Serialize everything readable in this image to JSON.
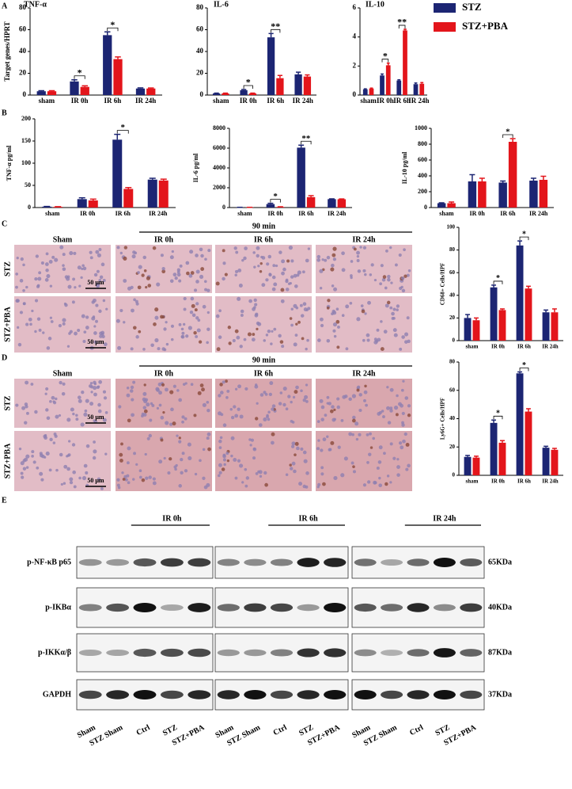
{
  "chart_data": [
    {
      "type": "bar",
      "title": "TNF-α",
      "ylabel": "Target genes/HPRT",
      "categories": [
        "sham",
        "IR 0h",
        "IR 6h",
        "IR 24h"
      ],
      "series": [
        {
          "name": "STZ",
          "color": "#1c2573",
          "values": [
            3.5,
            12.5,
            55,
            6
          ],
          "errors": [
            0.5,
            1.5,
            3,
            0.6
          ]
        },
        {
          "name": "STZ+PBA",
          "color": "#e3151b",
          "values": [
            3.5,
            7.5,
            33,
            6
          ],
          "errors": [
            0.5,
            1,
            2,
            0.5
          ]
        }
      ],
      "ylim": [
        0,
        80
      ],
      "yticks": [
        0,
        20,
        40,
        60,
        80
      ],
      "significance": [
        null,
        "*",
        "*",
        null
      ],
      "legend": "upper right"
    },
    {
      "type": "bar",
      "title": "IL-6",
      "categories": [
        "sham",
        "IR 0h",
        "IR 6h",
        "IR 24h"
      ],
      "series": [
        {
          "name": "STZ",
          "color": "#1c2573",
          "values": [
            1.5,
            4.5,
            53,
            19
          ],
          "errors": [
            0.3,
            0.6,
            3.5,
            2
          ]
        },
        {
          "name": "STZ+PBA",
          "color": "#e3151b",
          "values": [
            1.5,
            1.5,
            15.5,
            17
          ],
          "errors": [
            0.3,
            0.3,
            2.5,
            1.5
          ]
        }
      ],
      "ylim": [
        0,
        80
      ],
      "yticks": [
        0,
        20,
        40,
        60,
        80
      ],
      "significance": [
        null,
        "*",
        "**",
        null
      ]
    },
    {
      "type": "bar",
      "title": "IL-10",
      "categories": [
        "sham",
        "IR 0h",
        "IR 6h",
        "IR 24h"
      ],
      "series": [
        {
          "name": "STZ",
          "color": "#1c2573",
          "values": [
            0.4,
            1.35,
            1.0,
            0.75
          ],
          "errors": [
            0.03,
            0.1,
            0.05,
            0.08
          ]
        },
        {
          "name": "STZ+PBA",
          "color": "#e3151b",
          "values": [
            0.45,
            2.05,
            4.45,
            0.78
          ],
          "errors": [
            0.03,
            0.15,
            0.08,
            0.08
          ]
        }
      ],
      "ylim": [
        0,
        6
      ],
      "yticks": [
        0,
        2,
        4,
        6
      ],
      "significance": [
        null,
        "*",
        "**",
        null
      ]
    },
    {
      "type": "bar",
      "ylabel": "TNF-α pg/ml",
      "categories": [
        "sham",
        "IR 0h",
        "IR 6h",
        "IR 24h"
      ],
      "series": [
        {
          "name": "STZ",
          "color": "#1c2573",
          "values": [
            2,
            19,
            153,
            63
          ],
          "errors": [
            0.5,
            3,
            12,
            3
          ]
        },
        {
          "name": "STZ+PBA",
          "color": "#e3151b",
          "values": [
            1.5,
            16,
            42,
            61
          ],
          "errors": [
            0.5,
            3,
            3,
            3
          ]
        }
      ],
      "ylim": [
        0,
        200
      ],
      "yticks": [
        0,
        50,
        100,
        150,
        200
      ],
      "significance": [
        null,
        null,
        "*",
        null
      ]
    },
    {
      "type": "bar",
      "ylabel": "IL-6 pg/ml",
      "categories": [
        "sham",
        "IR 0h",
        "IR 6h",
        "IR 24h"
      ],
      "series": [
        {
          "name": "STZ",
          "color": "#1c2573",
          "values": [
            20,
            350,
            6050,
            850
          ],
          "errors": [
            5,
            80,
            250,
            30
          ]
        },
        {
          "name": "STZ+PBA",
          "color": "#e3151b",
          "values": [
            20,
            60,
            1050,
            840
          ],
          "errors": [
            5,
            20,
            150,
            30
          ]
        }
      ],
      "ylim": [
        0,
        8000
      ],
      "yticks": [
        0,
        2000,
        4000,
        6000,
        8000
      ],
      "significance": [
        null,
        "*",
        "**",
        null
      ]
    },
    {
      "type": "bar",
      "ylabel": "IL-10 pg/ml",
      "categories": [
        "sham",
        "IR 0h",
        "IR 6h",
        "IR 24h"
      ],
      "series": [
        {
          "name": "STZ",
          "color": "#1c2573",
          "values": [
            55,
            330,
            315,
            340
          ],
          "errors": [
            5,
            85,
            20,
            30
          ]
        },
        {
          "name": "STZ+PBA",
          "color": "#e3151b",
          "values": [
            55,
            330,
            830,
            350
          ],
          "errors": [
            15,
            40,
            40,
            45
          ]
        }
      ],
      "ylim": [
        0,
        1000
      ],
      "yticks": [
        0,
        200,
        400,
        600,
        800,
        1000
      ],
      "significance": [
        null,
        null,
        "*",
        null
      ]
    },
    {
      "type": "bar",
      "ylabel": "CD68+ Cells/HPF",
      "categories": [
        "sham",
        "IR 0h",
        "IR 6h",
        "IR 24h"
      ],
      "series": [
        {
          "name": "STZ",
          "color": "#1c2573",
          "values": [
            20,
            47,
            84,
            25
          ],
          "errors": [
            3,
            2,
            4,
            2
          ]
        },
        {
          "name": "STZ+PBA",
          "color": "#e3151b",
          "values": [
            18,
            27,
            46,
            25
          ],
          "errors": [
            2,
            1,
            2,
            3
          ]
        }
      ],
      "ylim": [
        0,
        100
      ],
      "yticks": [
        0,
        20,
        40,
        60,
        80,
        100
      ],
      "significance": [
        null,
        "*",
        "*",
        null
      ]
    },
    {
      "type": "bar",
      "ylabel": "Ly6G+ Cells/HPF",
      "categories": [
        "sham",
        "IR 0h",
        "IR 6h",
        "IR 24h"
      ],
      "series": [
        {
          "name": "STZ",
          "color": "#1c2573",
          "values": [
            13,
            37,
            72,
            19.5
          ],
          "errors": [
            1,
            2,
            1,
            1
          ]
        },
        {
          "name": "STZ+PBA",
          "color": "#e3151b",
          "values": [
            12.5,
            23,
            45,
            18
          ],
          "errors": [
            1,
            1.5,
            2,
            1
          ]
        }
      ],
      "ylim": [
        0,
        80
      ],
      "yticks": [
        0,
        20,
        40,
        60,
        80
      ],
      "significance": [
        null,
        "*",
        "*",
        null
      ]
    }
  ],
  "panel_labels": [
    "A",
    "B",
    "C",
    "D",
    "E"
  ],
  "histology": [
    {
      "time": "90 min",
      "columns": [
        "Sham",
        "IR 0h",
        "IR 6h",
        "IR 24h"
      ],
      "rows": [
        "STZ",
        "STZ+PBA"
      ],
      "scale_bar": "50 μm"
    },
    {
      "time": "90 min",
      "columns": [
        "Sham",
        "IR 0h",
        "IR 6h",
        "IR 24h"
      ],
      "rows": [
        "STZ",
        "STZ+PBA"
      ],
      "scale_bar": "50 μm"
    }
  ],
  "blot": {
    "groups": [
      "IR 0h",
      "IR 6h",
      "IR 24h"
    ],
    "proteins": [
      "p-NF-κB p65",
      "p-IKBα",
      "p-IKKα/β",
      "GAPDH"
    ],
    "sizes": [
      "65KDa",
      "40KDa",
      "87KDa",
      "37KDa"
    ],
    "lanes": [
      "Sham",
      "STZ Sham",
      "Ctrl",
      "STZ",
      "STZ+PBA"
    ]
  }
}
